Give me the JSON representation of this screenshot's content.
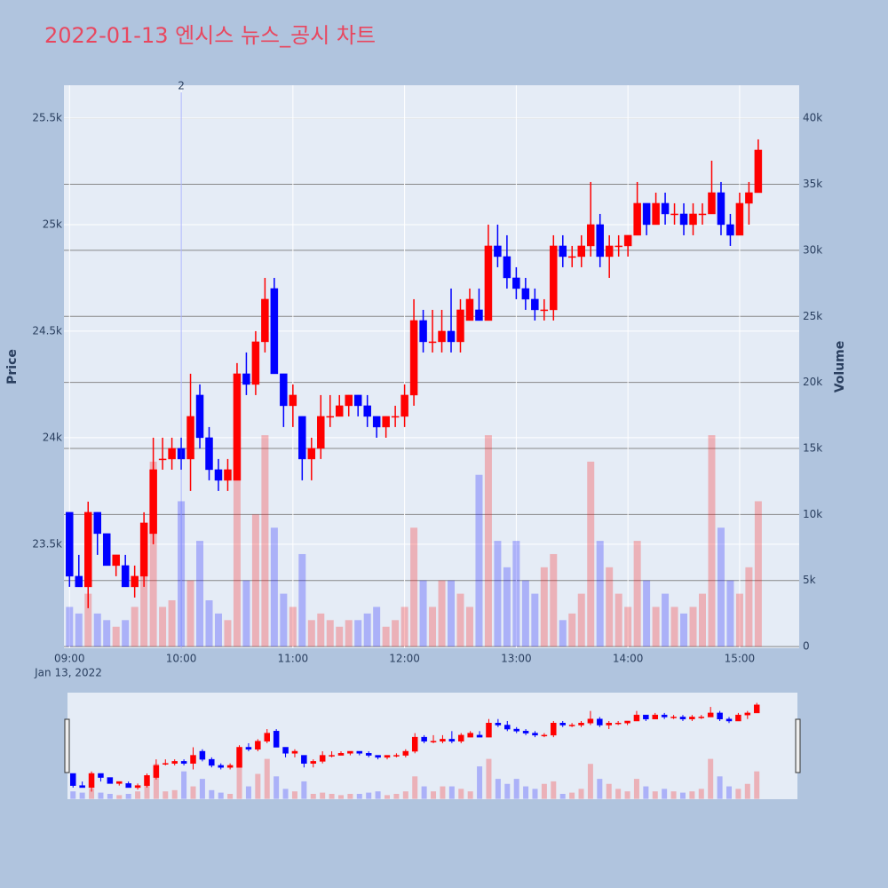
{
  "chart_data": {
    "type": "candlestick",
    "title": "2022-01-13 엔시스 뉴스_공시 차트",
    "y_label": "Price",
    "y2_label": "Volume",
    "date_label": "Jan 13, 2022",
    "increasing_color": "#ff0000",
    "decreasing_color": "#0000ff",
    "x": [
      "09:00",
      "09:05",
      "09:10",
      "09:15",
      "09:20",
      "09:25",
      "09:30",
      "09:35",
      "09:40",
      "09:45",
      "09:50",
      "09:55",
      "10:00",
      "10:05",
      "10:10",
      "10:15",
      "10:20",
      "10:25",
      "10:30",
      "10:35",
      "10:40",
      "10:45",
      "10:50",
      "10:55",
      "11:00",
      "11:05",
      "11:10",
      "11:15",
      "11:20",
      "11:25",
      "11:30",
      "11:35",
      "11:40",
      "11:45",
      "11:50",
      "11:55",
      "12:00",
      "12:05",
      "12:10",
      "12:15",
      "12:20",
      "12:25",
      "12:30",
      "12:35",
      "12:40",
      "12:45",
      "12:50",
      "12:55",
      "13:00",
      "13:05",
      "13:10",
      "13:15",
      "13:20",
      "13:25",
      "13:30",
      "13:35",
      "13:40",
      "13:45",
      "13:50",
      "13:55",
      "14:00",
      "14:05",
      "14:10",
      "14:15",
      "14:20",
      "14:25",
      "14:30",
      "14:35",
      "14:40",
      "14:45",
      "14:50",
      "14:55",
      "15:00",
      "15:05",
      "15:10"
    ],
    "open": [
      23650,
      23350,
      23300,
      23650,
      23550,
      23400,
      23400,
      23300,
      23350,
      23550,
      23900,
      23900,
      23950,
      23900,
      24200,
      24000,
      23850,
      23800,
      23800,
      24300,
      24250,
      24450,
      24700,
      24300,
      24150,
      24100,
      23900,
      23950,
      24100,
      24100,
      24150,
      24200,
      24150,
      24100,
      24050,
      24100,
      24100,
      24200,
      24550,
      24450,
      24450,
      24500,
      24450,
      24550,
      24600,
      24550,
      24900,
      24850,
      24750,
      24700,
      24650,
      24600,
      24600,
      24900,
      24850,
      24850,
      24900,
      25000,
      24850,
      24900,
      24900,
      24950,
      25100,
      25000,
      25100,
      25050,
      25050,
      25000,
      25050,
      25050,
      25150,
      25000,
      24950,
      25100,
      25150
    ],
    "high": [
      23650,
      23450,
      23700,
      23650,
      23550,
      23450,
      23450,
      23400,
      23650,
      24000,
      24000,
      24000,
      24000,
      24300,
      24250,
      24050,
      23900,
      23900,
      24350,
      24400,
      24500,
      24750,
      24750,
      24300,
      24250,
      24100,
      24000,
      24200,
      24200,
      24200,
      24200,
      24200,
      24200,
      24100,
      24100,
      24150,
      24250,
      24650,
      24600,
      24600,
      24600,
      24700,
      24650,
      24700,
      24700,
      25000,
      25000,
      24950,
      24800,
      24750,
      24700,
      24650,
      24950,
      24950,
      24900,
      24950,
      25200,
      25050,
      24950,
      24950,
      24950,
      25200,
      25100,
      25150,
      25150,
      25100,
      25100,
      25100,
      25100,
      25300,
      25200,
      25050,
      25150,
      25200,
      25400
    ],
    "low": [
      23300,
      23300,
      23200,
      23450,
      23400,
      23350,
      23300,
      23250,
      23300,
      23500,
      23850,
      23850,
      23850,
      23750,
      23950,
      23800,
      23750,
      23750,
      23800,
      24200,
      24200,
      24400,
      24300,
      24050,
      24050,
      23800,
      23800,
      23900,
      24050,
      24100,
      24100,
      24100,
      24050,
      24000,
      24000,
      24050,
      24050,
      24150,
      24400,
      24400,
      24400,
      24400,
      24400,
      24550,
      24550,
      24550,
      24800,
      24700,
      24650,
      24600,
      24550,
      24550,
      24550,
      24800,
      24800,
      24800,
      24850,
      24800,
      24750,
      24850,
      24850,
      24950,
      24950,
      25000,
      25000,
      25000,
      24950,
      24950,
      25000,
      25050,
      24950,
      24900,
      24950,
      25000,
      25150
    ],
    "close": [
      23350,
      23300,
      23650,
      23550,
      23400,
      23450,
      23300,
      23350,
      23600,
      23850,
      23900,
      23950,
      23900,
      24100,
      24000,
      23850,
      23800,
      23850,
      24300,
      24250,
      24450,
      24650,
      24300,
      24150,
      24200,
      23900,
      23950,
      24100,
      24100,
      24150,
      24200,
      24150,
      24100,
      24050,
      24100,
      24100,
      24200,
      24550,
      24450,
      24450,
      24500,
      24450,
      24600,
      24650,
      24550,
      24900,
      24850,
      24750,
      24700,
      24650,
      24600,
      24600,
      24900,
      24850,
      24850,
      24900,
      25000,
      24850,
      24900,
      24900,
      24950,
      25100,
      25000,
      25100,
      25050,
      25050,
      25000,
      25050,
      25050,
      25150,
      25000,
      24950,
      25100,
      25150,
      25350
    ],
    "volume": [
      3000,
      2500,
      4000,
      2500,
      2000,
      1500,
      2000,
      3000,
      8000,
      14000,
      3000,
      3500,
      11000,
      5000,
      8000,
      3500,
      2500,
      2000,
      15000,
      5000,
      10000,
      16000,
      9000,
      4000,
      3000,
      7000,
      2000,
      2500,
      2000,
      1500,
      2000,
      2000,
      2500,
      3000,
      1500,
      2000,
      3000,
      9000,
      5000,
      3000,
      5000,
      5000,
      4000,
      3000,
      13000,
      16000,
      8000,
      6000,
      8000,
      5000,
      4000,
      6000,
      7000,
      2000,
      2500,
      4000,
      14000,
      8000,
      6000,
      4000,
      3000,
      8000,
      5000,
      3000,
      4000,
      3000,
      2500,
      3000,
      4000,
      16000,
      9000,
      5000,
      4000,
      6000,
      11000
    ],
    "xlim": [
      "08:57",
      "15:32"
    ],
    "xticks": [
      "09:00",
      "10:00",
      "11:00",
      "12:00",
      "13:00",
      "14:00",
      "15:00"
    ],
    "ylim": [
      23012,
      25654
    ],
    "yticks": [
      {
        "value": 23500,
        "label": "23.5k"
      },
      {
        "value": 24000,
        "label": "24k"
      },
      {
        "value": 24500,
        "label": "24.5k"
      },
      {
        "value": 25000,
        "label": "25k"
      },
      {
        "value": 25500,
        "label": "25.5k"
      }
    ],
    "y2lim": [
      -130,
      42500
    ],
    "y2ticks": [
      0,
      {
        "value": 5000,
        "label": "5k"
      },
      {
        "value": 10000,
        "label": "10k"
      },
      {
        "value": 15000,
        "label": "15k"
      },
      {
        "value": 20000,
        "label": "20k"
      },
      {
        "value": 25000,
        "label": "25k"
      },
      {
        "value": 30000,
        "label": "30k"
      },
      {
        "value": 35000,
        "label": "35k"
      },
      {
        "value": 40000,
        "label": "40k"
      }
    ],
    "annotations": [
      {
        "x": "10:00",
        "text": "2"
      }
    ],
    "grid": true
  }
}
